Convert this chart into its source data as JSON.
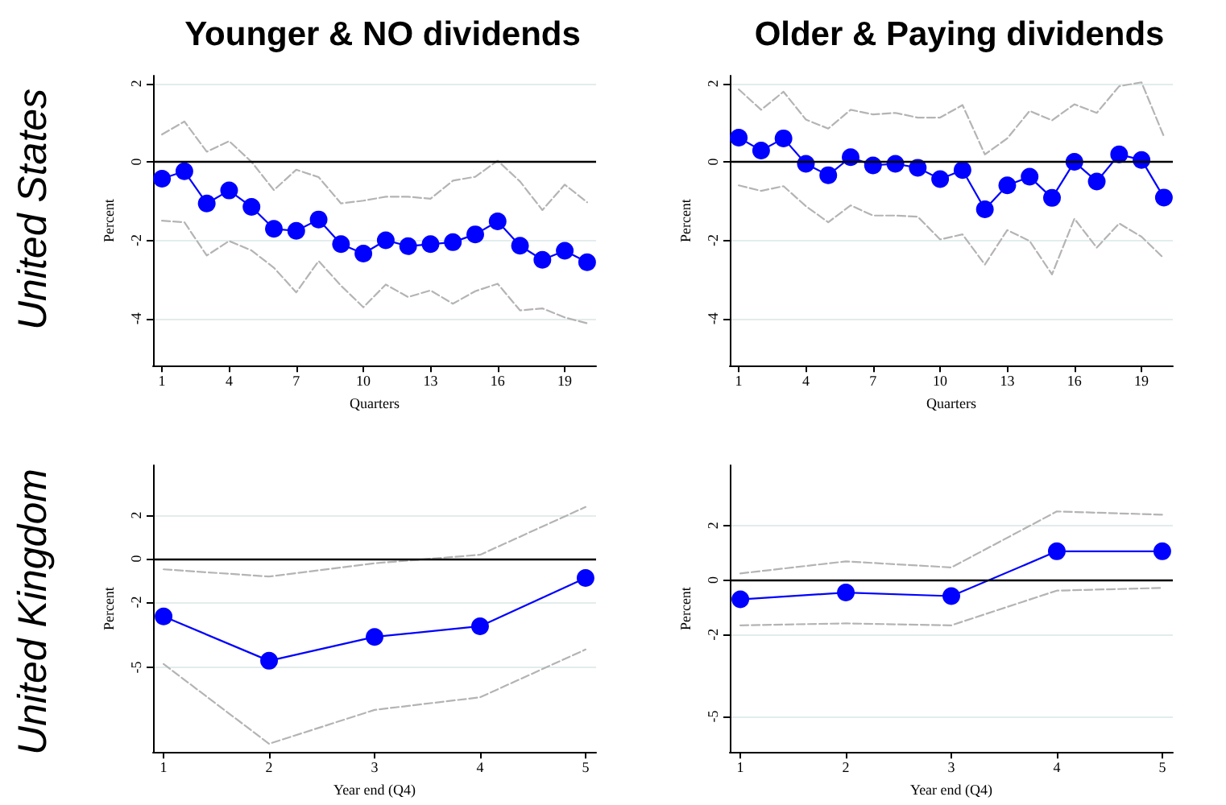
{
  "chart_data": [
    {
      "type": "line",
      "title": "Younger & NO dividends",
      "annotations": [
        "United States"
      ],
      "xlabel": "Quarters",
      "ylabel": "Percent",
      "x": [
        1,
        2,
        3,
        4,
        5,
        6,
        7,
        8,
        9,
        10,
        11,
        12,
        13,
        14,
        15,
        16,
        17,
        18,
        19,
        20
      ],
      "xlim": [
        0.6,
        20.4
      ],
      "xticks": [
        1,
        4,
        7,
        10,
        13,
        16,
        19
      ],
      "ylim": [
        -5.2,
        2.2
      ],
      "yticks": [
        -4,
        -2,
        0,
        2
      ],
      "grid": "y",
      "ref_lines": [
        {
          "axis": "y",
          "value": 0,
          "color": "#000000"
        }
      ],
      "series": [
        {
          "color": "#0000ff",
          "marker": "circle",
          "line_style": "solid",
          "values": [
            -0.43,
            -0.24,
            -1.06,
            -0.73,
            -1.15,
            -1.71,
            -1.76,
            -1.47,
            -2.1,
            -2.34,
            -2.0,
            -2.15,
            -2.1,
            -2.05,
            -1.85,
            -1.52,
            -2.14,
            -2.5,
            -2.27,
            -2.56
          ]
        },
        {
          "color": "#b4b4b4",
          "marker": "none",
          "line_style": "dashed",
          "values": [
            0.7,
            1.03,
            0.26,
            0.53,
            0.0,
            -0.72,
            -0.2,
            -0.39,
            -1.06,
            -0.99,
            -0.89,
            -0.89,
            -0.94,
            -0.48,
            -0.38,
            0.03,
            -0.5,
            -1.23,
            -0.58,
            -1.03
          ]
        },
        {
          "color": "#b4b4b4",
          "marker": "none",
          "line_style": "dashed",
          "values": [
            -1.5,
            -1.54,
            -2.39,
            -2.02,
            -2.26,
            -2.7,
            -3.33,
            -2.53,
            -3.16,
            -3.71,
            -3.13,
            -3.45,
            -3.28,
            -3.62,
            -3.3,
            -3.11,
            -3.79,
            -3.74,
            -3.97,
            -4.12
          ]
        }
      ]
    },
    {
      "type": "line",
      "title": "Older & Paying dividends",
      "xlabel": "Quarters",
      "ylabel": "Percent",
      "x": [
        1,
        2,
        3,
        4,
        5,
        6,
        7,
        8,
        9,
        10,
        11,
        12,
        13,
        14,
        15,
        16,
        17,
        18,
        19,
        20
      ],
      "xlim": [
        0.6,
        20.4
      ],
      "xticks": [
        1,
        4,
        7,
        10,
        13,
        16,
        19
      ],
      "ylim": [
        -5.2,
        2.2
      ],
      "yticks": [
        -4,
        -2,
        0,
        2
      ],
      "grid": "y",
      "ref_lines": [
        {
          "axis": "y",
          "value": 0,
          "color": "#000000"
        }
      ],
      "series": [
        {
          "color": "#0000ff",
          "marker": "circle",
          "line_style": "solid",
          "values": [
            0.62,
            0.29,
            0.6,
            -0.05,
            -0.34,
            0.12,
            -0.09,
            -0.05,
            -0.15,
            -0.44,
            -0.21,
            -1.21,
            -0.6,
            -0.38,
            -0.92,
            0.0,
            -0.5,
            0.19,
            0.05,
            -0.91
          ]
        },
        {
          "color": "#b4b4b4",
          "marker": "none",
          "line_style": "dashed",
          "values": [
            1.85,
            1.33,
            1.79,
            1.08,
            0.85,
            1.33,
            1.21,
            1.25,
            1.13,
            1.13,
            1.45,
            0.19,
            0.6,
            1.3,
            1.06,
            1.47,
            1.25,
            1.93,
            2.03,
            0.65
          ]
        },
        {
          "color": "#b4b4b4",
          "marker": "none",
          "line_style": "dashed",
          "values": [
            -0.6,
            -0.74,
            -0.62,
            -1.13,
            -1.54,
            -1.11,
            -1.37,
            -1.37,
            -1.4,
            -1.98,
            -1.85,
            -2.62,
            -1.74,
            -2.02,
            -2.87,
            -1.45,
            -2.19,
            -1.57,
            -1.91,
            -2.46
          ]
        }
      ]
    },
    {
      "type": "line",
      "annotations": [
        "United Kingdom"
      ],
      "xlabel": "Year end (Q4)",
      "ylabel": "Percent",
      "x": [
        1,
        2,
        3,
        4,
        5
      ],
      "xlim": [
        0.9,
        5.1
      ],
      "xticks": [
        1,
        2,
        3,
        4,
        5
      ],
      "ylim": [
        -8.9,
        4.3
      ],
      "yticks": [
        -5,
        -2,
        0,
        2
      ],
      "grid": "y",
      "ref_lines": [
        {
          "axis": "y",
          "value": 0,
          "color": "#000000"
        }
      ],
      "series": [
        {
          "color": "#0000ff",
          "marker": "circle",
          "line_style": "solid",
          "values": [
            -2.66,
            -4.7,
            -3.6,
            -3.11,
            -0.89
          ]
        },
        {
          "color": "#b4b4b4",
          "marker": "none",
          "line_style": "dashed",
          "values": [
            -0.49,
            -0.82,
            -0.21,
            0.18,
            2.38
          ]
        },
        {
          "color": "#b4b4b4",
          "marker": "none",
          "line_style": "dashed",
          "values": [
            -4.85,
            -8.52,
            -6.96,
            -6.38,
            -4.18
          ]
        }
      ]
    },
    {
      "type": "line",
      "xlabel": "Year end (Q4)",
      "ylabel": "Percent",
      "x": [
        1,
        2,
        3,
        4,
        5
      ],
      "xlim": [
        0.9,
        5.1
      ],
      "xticks": [
        1,
        2,
        3,
        4,
        5
      ],
      "ylim": [
        -6.3,
        4.2
      ],
      "yticks": [
        -5,
        -2,
        0,
        2
      ],
      "grid": "y",
      "ref_lines": [
        {
          "axis": "y",
          "value": 0,
          "color": "#000000"
        }
      ],
      "series": [
        {
          "color": "#0000ff",
          "marker": "circle",
          "line_style": "solid",
          "values": [
            -0.71,
            -0.46,
            -0.59,
            1.05,
            1.05
          ]
        },
        {
          "color": "#b4b4b4",
          "marker": "none",
          "line_style": "dashed",
          "values": [
            0.24,
            0.68,
            0.46,
            2.51,
            2.39
          ]
        },
        {
          "color": "#b4b4b4",
          "marker": "none",
          "line_style": "dashed",
          "values": [
            -1.66,
            -1.59,
            -1.66,
            -0.39,
            -0.29
          ]
        }
      ]
    }
  ]
}
